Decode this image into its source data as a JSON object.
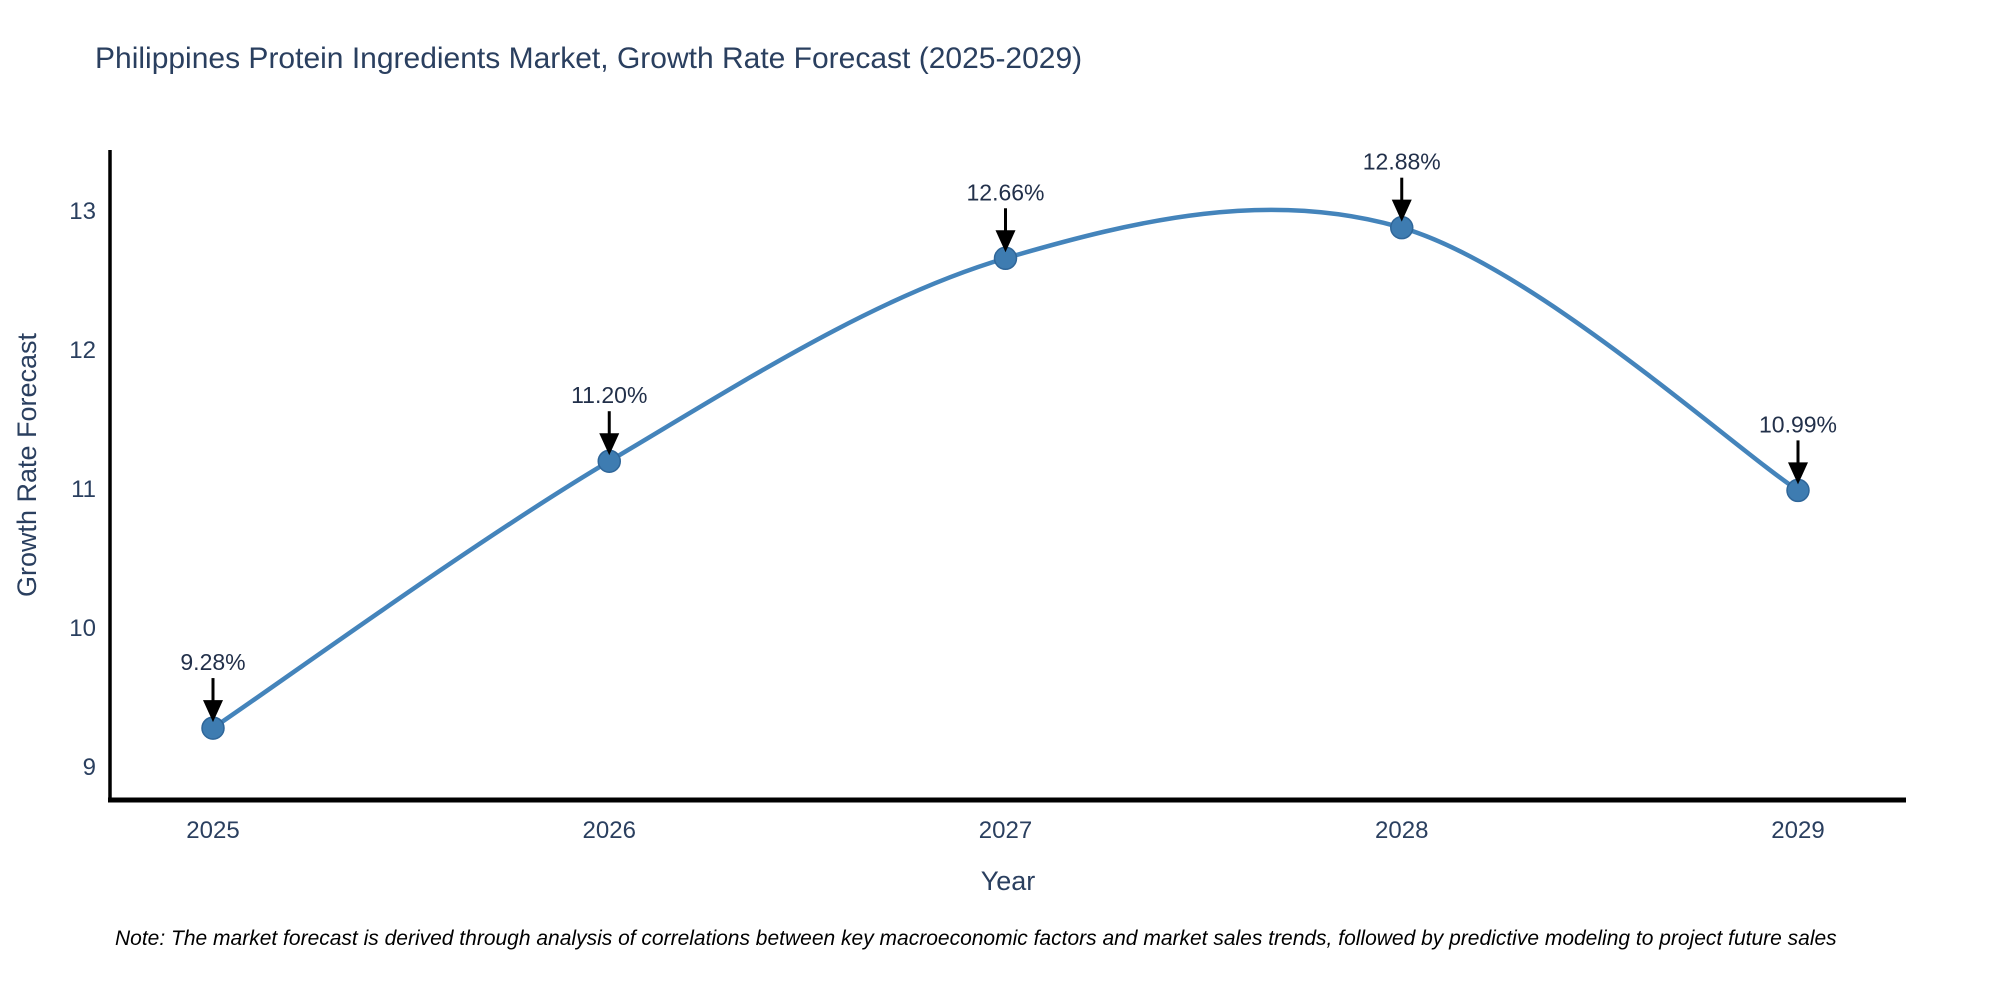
{
  "title": "Philippines Protein Ingredients Market, Growth Rate Forecast (2025-2029)",
  "note": "Note: The market forecast is derived through analysis of correlations between key macroeconomic factors and market sales trends, followed by predictive modeling to project future sales",
  "chart_data": {
    "type": "line",
    "line_shape": "spline",
    "title": "Philippines Protein Ingredients Market, Growth Rate Forecast (2025-2029)",
    "xlabel": "Year",
    "ylabel": "Growth Rate Forecast",
    "x": [
      2025,
      2026,
      2027,
      2028,
      2029
    ],
    "series": [
      {
        "name": "Growth Rate Forecast",
        "values": [
          9.28,
          11.2,
          12.66,
          12.88,
          10.99
        ]
      }
    ],
    "point_labels": [
      "9.28%",
      "11.20%",
      "12.66%",
      "12.88%",
      "10.99%"
    ],
    "yticks": [
      9,
      10,
      11,
      12,
      13
    ],
    "ylim": [
      8.76,
      13.42
    ],
    "grid": false,
    "legend_position": "none",
    "markers": true,
    "annotations_arrow": true,
    "colors": {
      "line": "#4484bb",
      "marker_fill": "#3e7cb1",
      "marker_edge": "#2f6699",
      "arrow": "#000000",
      "title_text": "#2a3f5f",
      "axis_text": "#2a3f5f",
      "annotation_text": "#22304a",
      "axis_line": "#000000",
      "note_text": "#000000",
      "background": "#ffffff"
    }
  }
}
